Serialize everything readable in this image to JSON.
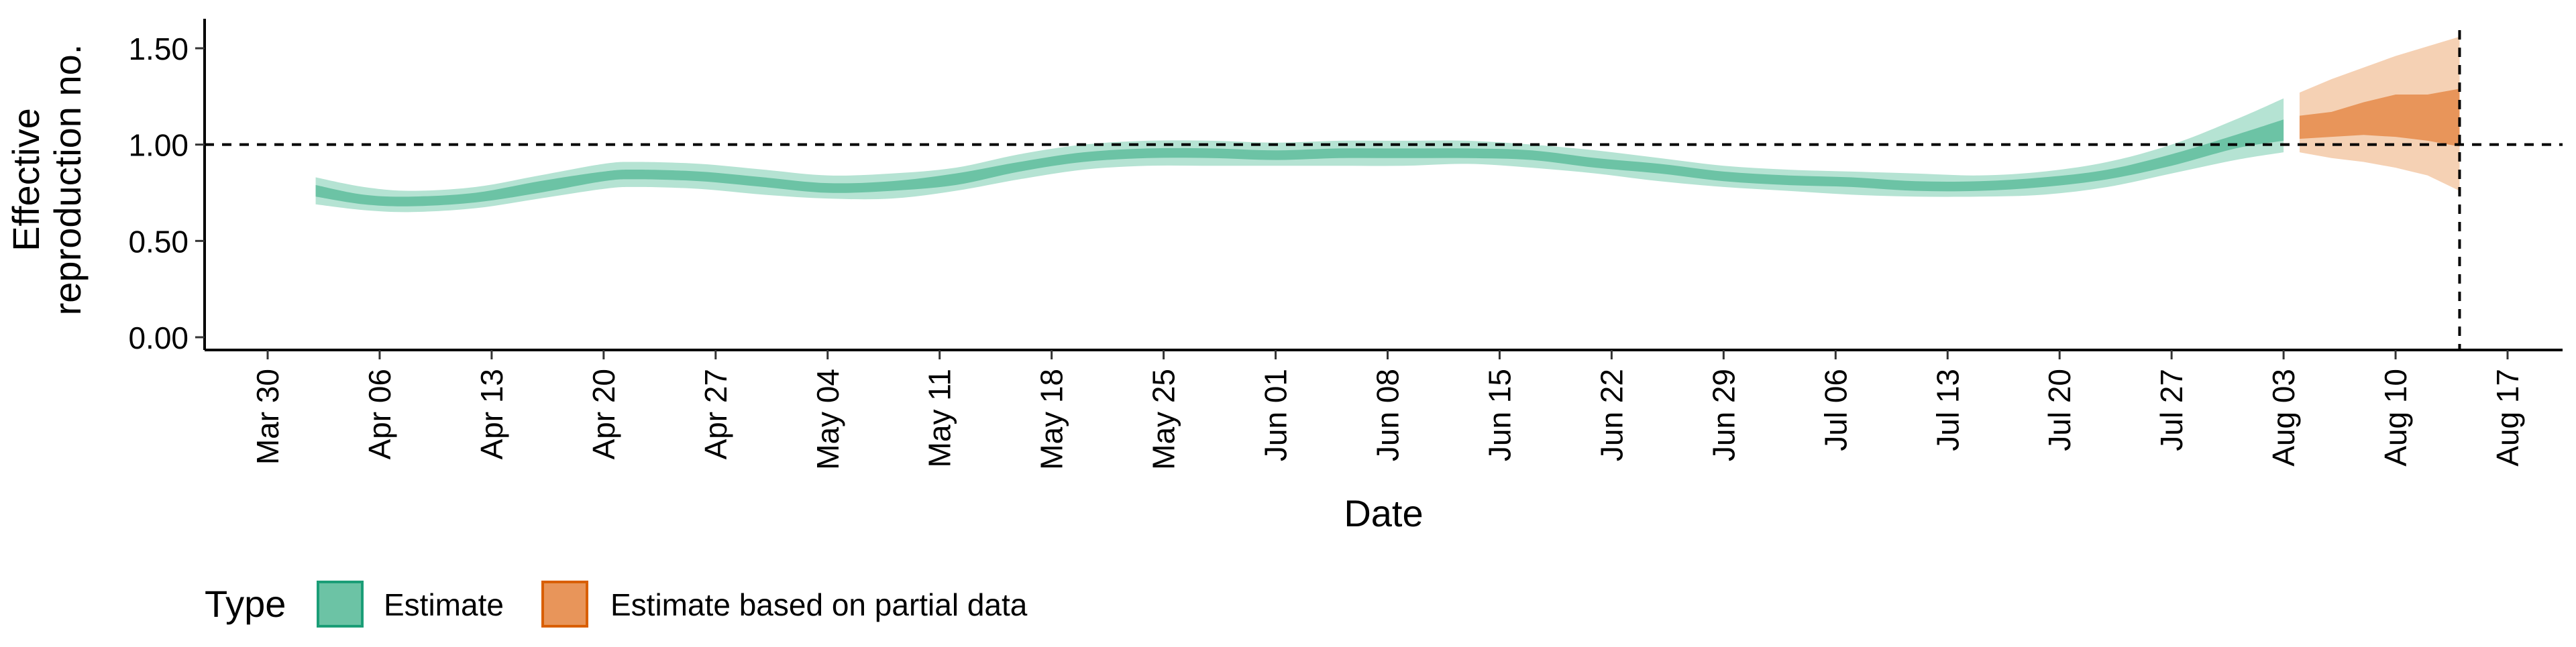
{
  "chart_data": {
    "type": "area",
    "title": "",
    "xlabel": "Date",
    "ylabel_lines": [
      "Effective",
      "reproduction no."
    ],
    "ylim": [
      0,
      1.6
    ],
    "yticks": [
      0.0,
      0.5,
      1.0,
      1.5
    ],
    "ytick_labels": [
      "0.00",
      "0.50",
      "1.00",
      "1.50"
    ],
    "xlim": [
      "2020-03-28",
      "2020-08-21"
    ],
    "xticks": [
      "2020-03-30",
      "2020-04-06",
      "2020-04-13",
      "2020-04-20",
      "2020-04-27",
      "2020-05-04",
      "2020-05-11",
      "2020-05-18",
      "2020-05-25",
      "2020-06-01",
      "2020-06-08",
      "2020-06-15",
      "2020-06-22",
      "2020-06-29",
      "2020-07-06",
      "2020-07-13",
      "2020-07-20",
      "2020-07-27",
      "2020-08-03",
      "2020-08-10",
      "2020-08-17"
    ],
    "xtick_labels": [
      "Mar 30",
      "Apr 06",
      "Apr 13",
      "Apr 20",
      "Apr 27",
      "May 04",
      "May 11",
      "May 18",
      "May 25",
      "Jun 01",
      "Jun 08",
      "Jun 15",
      "Jun 22",
      "Jun 29",
      "Jul 06",
      "Jul 13",
      "Jul 20",
      "Jul 27",
      "Aug 03",
      "Aug 10",
      "Aug 17"
    ],
    "reference_line_y": 1.0,
    "reference_line_x": "2020-08-14",
    "grid": false,
    "legend": {
      "title": "Type",
      "position": "bottom-left",
      "entries": [
        "Estimate",
        "Estimate based on partial data"
      ]
    },
    "colors": {
      "estimate_outer": "#b5e3d3",
      "estimate_inner": "#6cc3a5",
      "estimate_border": "#1b9e77",
      "partial_outer": "#f5d1b4",
      "partial_inner": "#e8955a",
      "partial_border": "#d95f02"
    },
    "series": [
      {
        "name": "Estimate",
        "points": [
          {
            "date": "2020-04-02",
            "lo90": 0.69,
            "lo50": 0.73,
            "hi50": 0.79,
            "hi90": 0.83
          },
          {
            "date": "2020-04-05",
            "lo90": 0.66,
            "lo50": 0.69,
            "hi50": 0.74,
            "hi90": 0.78
          },
          {
            "date": "2020-04-08",
            "lo90": 0.65,
            "lo50": 0.68,
            "hi50": 0.73,
            "hi90": 0.76
          },
          {
            "date": "2020-04-12",
            "lo90": 0.67,
            "lo50": 0.7,
            "hi50": 0.75,
            "hi90": 0.78
          },
          {
            "date": "2020-04-16",
            "lo90": 0.72,
            "lo50": 0.75,
            "hi50": 0.81,
            "hi90": 0.84
          },
          {
            "date": "2020-04-20",
            "lo90": 0.77,
            "lo50": 0.81,
            "hi50": 0.86,
            "hi90": 0.9
          },
          {
            "date": "2020-04-22",
            "lo90": 0.78,
            "lo50": 0.82,
            "hi50": 0.87,
            "hi90": 0.91
          },
          {
            "date": "2020-04-26",
            "lo90": 0.77,
            "lo50": 0.81,
            "hi50": 0.86,
            "hi90": 0.9
          },
          {
            "date": "2020-04-30",
            "lo90": 0.74,
            "lo50": 0.78,
            "hi50": 0.83,
            "hi90": 0.87
          },
          {
            "date": "2020-05-04",
            "lo90": 0.72,
            "lo50": 0.75,
            "hi50": 0.8,
            "hi90": 0.84
          },
          {
            "date": "2020-05-08",
            "lo90": 0.72,
            "lo50": 0.76,
            "hi50": 0.81,
            "hi90": 0.85
          },
          {
            "date": "2020-05-12",
            "lo90": 0.76,
            "lo50": 0.79,
            "hi50": 0.85,
            "hi90": 0.88
          },
          {
            "date": "2020-05-16",
            "lo90": 0.82,
            "lo50": 0.86,
            "hi50": 0.91,
            "hi90": 0.95
          },
          {
            "date": "2020-05-20",
            "lo90": 0.87,
            "lo50": 0.91,
            "hi50": 0.96,
            "hi90": 1.0
          },
          {
            "date": "2020-05-24",
            "lo90": 0.89,
            "lo50": 0.93,
            "hi50": 0.98,
            "hi90": 1.02
          },
          {
            "date": "2020-05-28",
            "lo90": 0.89,
            "lo50": 0.93,
            "hi50": 0.98,
            "hi90": 1.02
          },
          {
            "date": "2020-06-01",
            "lo90": 0.89,
            "lo50": 0.92,
            "hi50": 0.97,
            "hi90": 1.01
          },
          {
            "date": "2020-06-05",
            "lo90": 0.89,
            "lo50": 0.93,
            "hi50": 0.98,
            "hi90": 1.02
          },
          {
            "date": "2020-06-09",
            "lo90": 0.89,
            "lo50": 0.93,
            "hi50": 0.98,
            "hi90": 1.02
          },
          {
            "date": "2020-06-13",
            "lo90": 0.9,
            "lo50": 0.93,
            "hi50": 0.98,
            "hi90": 1.02
          },
          {
            "date": "2020-06-17",
            "lo90": 0.88,
            "lo50": 0.92,
            "hi50": 0.97,
            "hi90": 1.0
          },
          {
            "date": "2020-06-21",
            "lo90": 0.85,
            "lo50": 0.88,
            "hi50": 0.93,
            "hi90": 0.97
          },
          {
            "date": "2020-06-25",
            "lo90": 0.81,
            "lo50": 0.85,
            "hi50": 0.9,
            "hi90": 0.93
          },
          {
            "date": "2020-06-29",
            "lo90": 0.78,
            "lo50": 0.81,
            "hi50": 0.86,
            "hi90": 0.89
          },
          {
            "date": "2020-07-03",
            "lo90": 0.76,
            "lo50": 0.79,
            "hi50": 0.84,
            "hi90": 0.87
          },
          {
            "date": "2020-07-07",
            "lo90": 0.74,
            "lo50": 0.78,
            "hi50": 0.83,
            "hi90": 0.86
          },
          {
            "date": "2020-07-11",
            "lo90": 0.73,
            "lo50": 0.76,
            "hi50": 0.81,
            "hi90": 0.85
          },
          {
            "date": "2020-07-15",
            "lo90": 0.73,
            "lo50": 0.76,
            "hi50": 0.81,
            "hi90": 0.84
          },
          {
            "date": "2020-07-19",
            "lo90": 0.74,
            "lo50": 0.78,
            "hi50": 0.83,
            "hi90": 0.86
          },
          {
            "date": "2020-07-23",
            "lo90": 0.78,
            "lo50": 0.82,
            "hi50": 0.87,
            "hi90": 0.91
          },
          {
            "date": "2020-07-27",
            "lo90": 0.85,
            "lo50": 0.89,
            "hi50": 0.95,
            "hi90": 1.0
          },
          {
            "date": "2020-07-31",
            "lo90": 0.92,
            "lo50": 0.98,
            "hi50": 1.05,
            "hi90": 1.13
          },
          {
            "date": "2020-08-03",
            "lo90": 0.96,
            "lo50": 1.02,
            "hi50": 1.13,
            "hi90": 1.24
          }
        ]
      },
      {
        "name": "Estimate based on partial data",
        "points": [
          {
            "date": "2020-08-04",
            "lo90": 0.96,
            "lo50": 1.03,
            "hi50": 1.15,
            "hi90": 1.27
          },
          {
            "date": "2020-08-06",
            "lo90": 0.93,
            "lo50": 1.04,
            "hi50": 1.17,
            "hi90": 1.34
          },
          {
            "date": "2020-08-08",
            "lo90": 0.91,
            "lo50": 1.05,
            "hi50": 1.22,
            "hi90": 1.4
          },
          {
            "date": "2020-08-10",
            "lo90": 0.88,
            "lo50": 1.04,
            "hi50": 1.26,
            "hi90": 1.46
          },
          {
            "date": "2020-08-12",
            "lo90": 0.84,
            "lo50": 1.02,
            "hi50": 1.26,
            "hi90": 1.51
          },
          {
            "date": "2020-08-14",
            "lo90": 0.76,
            "lo50": 0.99,
            "hi50": 1.29,
            "hi90": 1.56
          }
        ]
      }
    ]
  }
}
